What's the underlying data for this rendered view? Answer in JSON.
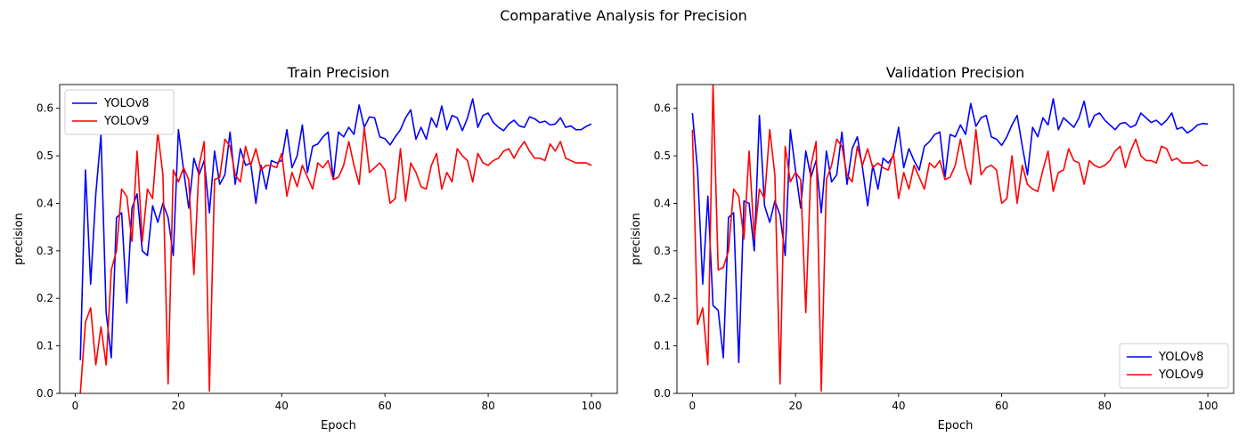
{
  "suptitle": "Comparative Analysis for Precision",
  "colors": {
    "YOLOv8": "#0000ff",
    "YOLOv9": "#ff0000"
  },
  "chart_data": [
    {
      "type": "line",
      "title": "Train Precision",
      "xlabel": "Epoch",
      "ylabel": "precision",
      "xlim": [
        -3,
        105
      ],
      "ylim": [
        0.0,
        0.65
      ],
      "xticks": [
        0,
        20,
        40,
        60,
        80,
        100
      ],
      "yticks": [
        0.0,
        0.1,
        0.2,
        0.3,
        0.4,
        0.5,
        0.6
      ],
      "legend": "top-left",
      "grid": false,
      "series": [
        {
          "name": "YOLOv8",
          "x": [
            1,
            2,
            3,
            4,
            5,
            6,
            7,
            8,
            9,
            10,
            11,
            12,
            13,
            14,
            15,
            16,
            17,
            18,
            19,
            20,
            21,
            22,
            23,
            24,
            25,
            26,
            27,
            28,
            29,
            30,
            31,
            32,
            33,
            34,
            35,
            36,
            37,
            38,
            39,
            40,
            41,
            42,
            43,
            44,
            45,
            46,
            47,
            48,
            49,
            50,
            51,
            52,
            53,
            54,
            55,
            56,
            57,
            58,
            59,
            60,
            61,
            62,
            63,
            64,
            65,
            66,
            67,
            68,
            69,
            70,
            71,
            72,
            73,
            74,
            75,
            76,
            77,
            78,
            79,
            80,
            81,
            82,
            83,
            84,
            85,
            86,
            87,
            88,
            89,
            90,
            91,
            92,
            93,
            94,
            95,
            96,
            97,
            98,
            99,
            100
          ],
          "y": [
            0.07,
            0.47,
            0.23,
            0.42,
            0.545,
            0.17,
            0.075,
            0.37,
            0.38,
            0.19,
            0.39,
            0.42,
            0.3,
            0.29,
            0.395,
            0.36,
            0.4,
            0.37,
            0.29,
            0.555,
            0.47,
            0.39,
            0.495,
            0.46,
            0.49,
            0.38,
            0.51,
            0.44,
            0.46,
            0.55,
            0.44,
            0.515,
            0.48,
            0.485,
            0.4,
            0.48,
            0.43,
            0.49,
            0.485,
            0.49,
            0.555,
            0.475,
            0.5,
            0.565,
            0.465,
            0.52,
            0.525,
            0.54,
            0.55,
            0.45,
            0.55,
            0.54,
            0.56,
            0.545,
            0.607,
            0.56,
            0.582,
            0.58,
            0.54,
            0.536,
            0.523,
            0.54,
            0.555,
            0.58,
            0.597,
            0.535,
            0.56,
            0.535,
            0.58,
            0.56,
            0.605,
            0.555,
            0.585,
            0.58,
            0.553,
            0.58,
            0.62,
            0.56,
            0.585,
            0.59,
            0.57,
            0.56,
            0.553,
            0.567,
            0.575,
            0.563,
            0.56,
            0.582,
            0.578,
            0.57,
            0.573,
            0.565,
            0.567,
            0.58,
            0.56,
            0.563,
            0.555,
            0.555,
            0.562,
            0.567
          ]
        },
        {
          "name": "YOLOv9",
          "x": [
            1,
            2,
            3,
            4,
            5,
            6,
            7,
            8,
            9,
            10,
            11,
            12,
            13,
            14,
            15,
            16,
            17,
            18,
            19,
            20,
            21,
            22,
            23,
            24,
            25,
            26,
            27,
            28,
            29,
            30,
            31,
            32,
            33,
            34,
            35,
            36,
            37,
            38,
            39,
            40,
            41,
            42,
            43,
            44,
            45,
            46,
            47,
            48,
            49,
            50,
            51,
            52,
            53,
            54,
            55,
            56,
            57,
            58,
            59,
            60,
            61,
            62,
            63,
            64,
            65,
            66,
            67,
            68,
            69,
            70,
            71,
            72,
            73,
            74,
            75,
            76,
            77,
            78,
            79,
            80,
            81,
            82,
            83,
            84,
            85,
            86,
            87,
            88,
            89,
            90,
            91,
            92,
            93,
            94,
            95,
            96,
            97,
            98,
            99,
            100
          ],
          "y": [
            0.0,
            0.15,
            0.18,
            0.06,
            0.14,
            0.06,
            0.26,
            0.3,
            0.43,
            0.415,
            0.32,
            0.51,
            0.32,
            0.43,
            0.41,
            0.55,
            0.46,
            0.02,
            0.47,
            0.445,
            0.475,
            0.45,
            0.25,
            0.48,
            0.53,
            0.005,
            0.45,
            0.455,
            0.535,
            0.52,
            0.46,
            0.445,
            0.52,
            0.48,
            0.515,
            0.47,
            0.48,
            0.48,
            0.475,
            0.505,
            0.415,
            0.465,
            0.435,
            0.48,
            0.455,
            0.43,
            0.485,
            0.475,
            0.49,
            0.45,
            0.455,
            0.48,
            0.53,
            0.48,
            0.44,
            0.56,
            0.465,
            0.475,
            0.485,
            0.47,
            0.4,
            0.41,
            0.515,
            0.405,
            0.485,
            0.465,
            0.435,
            0.43,
            0.48,
            0.505,
            0.43,
            0.465,
            0.445,
            0.515,
            0.5,
            0.49,
            0.445,
            0.505,
            0.485,
            0.48,
            0.49,
            0.495,
            0.51,
            0.515,
            0.495,
            0.515,
            0.53,
            0.51,
            0.495,
            0.495,
            0.49,
            0.525,
            0.51,
            0.53,
            0.495,
            0.49,
            0.485,
            0.485,
            0.485,
            0.48
          ]
        }
      ]
    },
    {
      "type": "line",
      "title": "Validation Precision",
      "xlabel": "Epoch",
      "ylabel": "precision",
      "xlim": [
        -3,
        105
      ],
      "ylim": [
        0.0,
        0.65
      ],
      "xticks": [
        0,
        20,
        40,
        60,
        80,
        100
      ],
      "yticks": [
        0.0,
        0.1,
        0.2,
        0.3,
        0.4,
        0.5,
        0.6
      ],
      "legend": "bottom-right",
      "grid": false,
      "series": [
        {
          "name": "YOLOv8",
          "x": [
            0,
            1,
            2,
            3,
            4,
            5,
            6,
            7,
            8,
            9,
            10,
            11,
            12,
            13,
            14,
            15,
            16,
            17,
            18,
            19,
            20,
            21,
            22,
            23,
            24,
            25,
            26,
            27,
            28,
            29,
            30,
            31,
            32,
            33,
            34,
            35,
            36,
            37,
            38,
            39,
            40,
            41,
            42,
            43,
            44,
            45,
            46,
            47,
            48,
            49,
            50,
            51,
            52,
            53,
            54,
            55,
            56,
            57,
            58,
            59,
            60,
            61,
            62,
            63,
            64,
            65,
            66,
            67,
            68,
            69,
            70,
            71,
            72,
            73,
            74,
            75,
            76,
            77,
            78,
            79,
            80,
            81,
            82,
            83,
            84,
            85,
            86,
            87,
            88,
            89,
            90,
            91,
            92,
            93,
            94,
            95,
            96,
            97,
            98,
            99,
            100
          ],
          "y": [
            0.59,
            0.47,
            0.23,
            0.415,
            0.185,
            0.175,
            0.075,
            0.37,
            0.38,
            0.065,
            0.405,
            0.4,
            0.3,
            0.585,
            0.395,
            0.36,
            0.405,
            0.375,
            0.29,
            0.555,
            0.47,
            0.39,
            0.51,
            0.455,
            0.49,
            0.38,
            0.51,
            0.445,
            0.46,
            0.55,
            0.44,
            0.515,
            0.54,
            0.475,
            0.395,
            0.48,
            0.43,
            0.495,
            0.485,
            0.5,
            0.56,
            0.475,
            0.515,
            0.49,
            0.47,
            0.52,
            0.53,
            0.545,
            0.55,
            0.455,
            0.545,
            0.54,
            0.565,
            0.545,
            0.61,
            0.562,
            0.58,
            0.585,
            0.54,
            0.535,
            0.522,
            0.54,
            0.565,
            0.585,
            0.52,
            0.46,
            0.56,
            0.54,
            0.58,
            0.565,
            0.62,
            0.555,
            0.58,
            0.57,
            0.56,
            0.58,
            0.615,
            0.56,
            0.585,
            0.59,
            0.575,
            0.565,
            0.555,
            0.568,
            0.57,
            0.56,
            0.565,
            0.59,
            0.58,
            0.57,
            0.575,
            0.565,
            0.575,
            0.59,
            0.556,
            0.56,
            0.548,
            0.555,
            0.565,
            0.568,
            0.567
          ]
        },
        {
          "name": "YOLOv9",
          "x": [
            0,
            1,
            2,
            3,
            4,
            5,
            6,
            7,
            8,
            9,
            10,
            11,
            12,
            13,
            14,
            15,
            16,
            17,
            18,
            19,
            20,
            21,
            22,
            23,
            24,
            25,
            26,
            27,
            28,
            29,
            30,
            31,
            32,
            33,
            34,
            35,
            36,
            37,
            38,
            39,
            40,
            41,
            42,
            43,
            44,
            45,
            46,
            47,
            48,
            49,
            50,
            51,
            52,
            53,
            54,
            55,
            56,
            57,
            58,
            59,
            60,
            61,
            62,
            63,
            64,
            65,
            66,
            67,
            68,
            69,
            70,
            71,
            72,
            73,
            74,
            75,
            76,
            77,
            78,
            79,
            80,
            81,
            82,
            83,
            84,
            85,
            86,
            87,
            88,
            89,
            90,
            91,
            92,
            93,
            94,
            95,
            96,
            97,
            98,
            99,
            100
          ],
          "y": [
            0.555,
            0.145,
            0.18,
            0.06,
            0.65,
            0.26,
            0.265,
            0.3,
            0.43,
            0.415,
            0.325,
            0.51,
            0.325,
            0.43,
            0.41,
            0.555,
            0.46,
            0.02,
            0.52,
            0.445,
            0.465,
            0.45,
            0.17,
            0.48,
            0.53,
            0.005,
            0.45,
            0.48,
            0.535,
            0.52,
            0.46,
            0.445,
            0.52,
            0.48,
            0.515,
            0.475,
            0.485,
            0.475,
            0.47,
            0.505,
            0.41,
            0.465,
            0.43,
            0.48,
            0.455,
            0.43,
            0.485,
            0.475,
            0.49,
            0.45,
            0.455,
            0.48,
            0.535,
            0.475,
            0.44,
            0.555,
            0.46,
            0.475,
            0.48,
            0.47,
            0.4,
            0.41,
            0.5,
            0.4,
            0.48,
            0.44,
            0.43,
            0.425,
            0.47,
            0.51,
            0.425,
            0.465,
            0.47,
            0.515,
            0.49,
            0.485,
            0.44,
            0.49,
            0.48,
            0.475,
            0.48,
            0.49,
            0.51,
            0.52,
            0.475,
            0.51,
            0.535,
            0.5,
            0.49,
            0.49,
            0.485,
            0.52,
            0.515,
            0.49,
            0.495,
            0.485,
            0.485,
            0.485,
            0.49,
            0.48,
            0.48
          ]
        }
      ]
    }
  ]
}
